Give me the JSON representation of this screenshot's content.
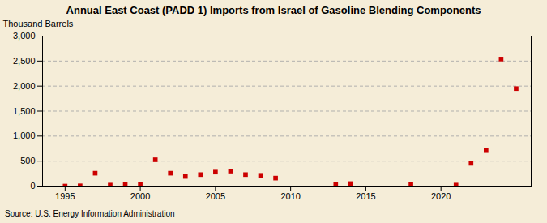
{
  "chart_data": {
    "type": "scatter",
    "title": "Annual East Coast (PADD 1) Imports from Israel of Gasoline Blending Components",
    "ylabel": "Thousand Barrels",
    "source": "Source: U.S. Energy Information Administration",
    "x": [
      1995,
      1996,
      1997,
      1998,
      1999,
      2000,
      2001,
      2002,
      2003,
      2004,
      2005,
      2006,
      2007,
      2008,
      2009,
      2013,
      2014,
      2018,
      2021,
      2022,
      2023,
      2024,
      2025
    ],
    "values": [
      0,
      5,
      258,
      20,
      30,
      35,
      527,
      258,
      193,
      230,
      280,
      300,
      230,
      215,
      160,
      40,
      50,
      30,
      20,
      455,
      710,
      2540,
      1950
    ],
    "color": "#cc0000",
    "marker": "square",
    "xlim": [
      1993.5,
      2026
    ],
    "xticks": [
      1995,
      2000,
      2005,
      2010,
      2015,
      2020
    ],
    "ylim": [
      0,
      3000
    ],
    "yticks": [
      0,
      500,
      {
        "value": 1000,
        "label": "1,000"
      },
      {
        "value": 1500,
        "label": "1,500"
      },
      {
        "value": 2000,
        "label": "2,000"
      },
      {
        "value": 2500,
        "label": "2,500"
      },
      {
        "value": 3000,
        "label": "3,000"
      }
    ],
    "grid": "y"
  }
}
